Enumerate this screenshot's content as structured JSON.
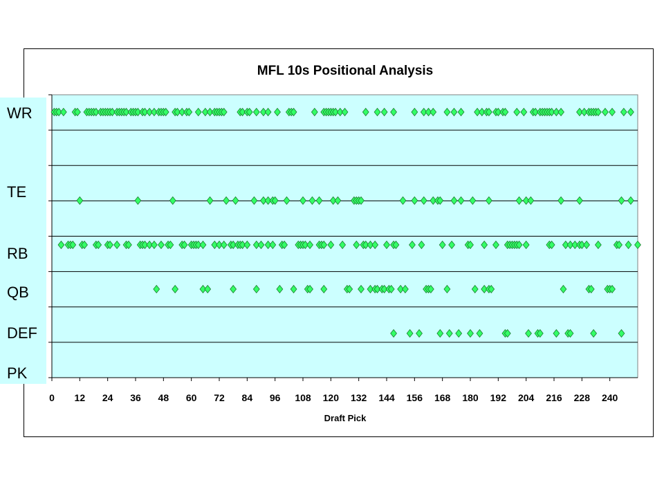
{
  "chart_data": {
    "type": "scatter",
    "title": "MFL 10s Positional Analysis",
    "xlabel": "Draft Pick",
    "ylabel": "",
    "xlim": [
      0,
      252
    ],
    "xticks": [
      0,
      12,
      24,
      36,
      48,
      60,
      72,
      84,
      96,
      108,
      120,
      132,
      144,
      156,
      168,
      180,
      192,
      204,
      216,
      228,
      240
    ],
    "grid": true,
    "marker": "diamond",
    "marker_color": "#33ff66",
    "plot_background": "#ccffff",
    "categories": [
      "WR",
      "TE",
      "RB",
      "QB",
      "DEF",
      "PK"
    ],
    "series": [
      {
        "name": "WR",
        "x": [
          1,
          2,
          3,
          5,
          10,
          11,
          15,
          16,
          17,
          18,
          19,
          21,
          22,
          23,
          24,
          25,
          26,
          28,
          29,
          30,
          31,
          32,
          34,
          35,
          36,
          37,
          39,
          40,
          42,
          44,
          46,
          47,
          48,
          49,
          53,
          54,
          56,
          58,
          59,
          63,
          66,
          68,
          70,
          71,
          72,
          73,
          74,
          81,
          82,
          84,
          85,
          88,
          91,
          93,
          97,
          102,
          103,
          104,
          113,
          117,
          118,
          119,
          120,
          121,
          122,
          124,
          126,
          135,
          140,
          143,
          147,
          156,
          160,
          162,
          164,
          170,
          173,
          176,
          183,
          185,
          187,
          188,
          191,
          192,
          194,
          195,
          200,
          203,
          207,
          208,
          210,
          211,
          212,
          213,
          214,
          215,
          217,
          219,
          227,
          229,
          231,
          232,
          233,
          234,
          235,
          238,
          241,
          246,
          249
        ]
      },
      {
        "name": "TE",
        "x": [
          12,
          37,
          52,
          68,
          75,
          79,
          87,
          91,
          93,
          95,
          96,
          101,
          108,
          112,
          115,
          121,
          123,
          130,
          131,
          132,
          133,
          151,
          156,
          160,
          164,
          166,
          167,
          173,
          176,
          181,
          188,
          201,
          204,
          206,
          219,
          227,
          245,
          249
        ]
      },
      {
        "name": "RB",
        "x": [
          4,
          7,
          8,
          9,
          13,
          14,
          19,
          20,
          24,
          25,
          28,
          32,
          33,
          38,
          39,
          40,
          42,
          44,
          47,
          50,
          51,
          56,
          57,
          60,
          61,
          62,
          63,
          65,
          70,
          72,
          74,
          77,
          78,
          80,
          81,
          82,
          84,
          88,
          90,
          93,
          95,
          99,
          100,
          106,
          107,
          108,
          109,
          111,
          115,
          116,
          117,
          120,
          125,
          131,
          134,
          135,
          137,
          139,
          144,
          147,
          148,
          155,
          159,
          168,
          172,
          179,
          180,
          186,
          191,
          196,
          197,
          198,
          199,
          200,
          201,
          204,
          214,
          215,
          221,
          223,
          225,
          227,
          228,
          230,
          235,
          243,
          244,
          248,
          252
        ]
      },
      {
        "name": "QB",
        "x": [
          45,
          53,
          65,
          67,
          78,
          88,
          98,
          104,
          110,
          111,
          117,
          127,
          128,
          133,
          137,
          139,
          140,
          142,
          143,
          145,
          146,
          150,
          152,
          161,
          162,
          163,
          170,
          182,
          186,
          188,
          189,
          220,
          231,
          232,
          239,
          240,
          241
        ]
      },
      {
        "name": "DEF",
        "x": [
          147,
          154,
          158,
          167,
          171,
          175,
          180,
          184,
          195,
          196,
          205,
          209,
          210,
          217,
          222,
          223,
          233,
          245
        ]
      },
      {
        "name": "PK",
        "x": []
      }
    ]
  }
}
